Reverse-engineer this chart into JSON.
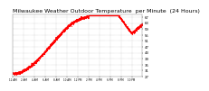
{
  "title": "Milwaukee Weather Outdoor Temperature  per Minute  (24 Hours)",
  "title_fontsize": 4.5,
  "background_color": "#ffffff",
  "plot_color": "#ff0000",
  "ylim": [
    27,
    69
  ],
  "yticks": [
    27,
    31,
    35,
    39,
    43,
    47,
    51,
    55,
    59,
    63,
    67
  ],
  "y_tick_labels": [
    "27",
    "31",
    "35",
    "39",
    "43",
    "47",
    "51",
    "55",
    "59",
    "63",
    "67"
  ],
  "line_width": 0.6,
  "marker_size": 0.8,
  "num_points": 1440,
  "seed": 42,
  "xtick_hours": [
    0,
    2,
    4,
    6,
    8,
    10,
    12,
    14,
    16,
    18,
    20,
    22
  ],
  "xtick_labels": [
    "12 AM",
    "2 AM",
    "4 AM",
    "6 AM",
    "8 AM",
    "10 AM",
    "12 PM",
    "2 PM",
    "4 PM",
    "6 PM",
    "8 PM",
    "10 PM"
  ]
}
